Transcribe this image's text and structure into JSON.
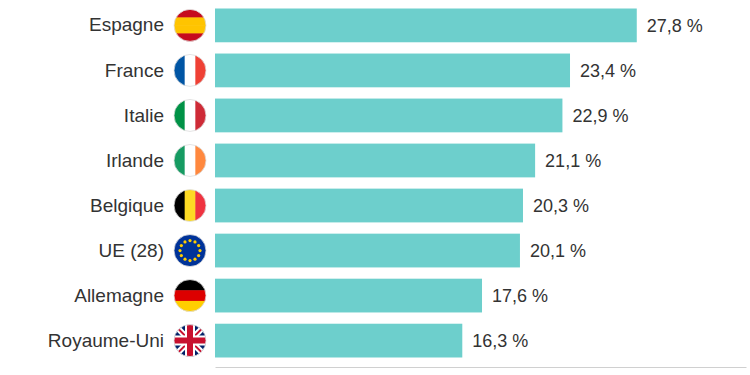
{
  "chart_data": {
    "type": "bar",
    "orientation": "horizontal",
    "categories": [
      "Espagne",
      "France",
      "Italie",
      "Irlande",
      "Belgique",
      "UE (28)",
      "Allemagne",
      "Royaume-Uni"
    ],
    "values": [
      27.8,
      23.4,
      22.9,
      21.1,
      20.3,
      20.1,
      17.6,
      16.3
    ],
    "value_labels": [
      "27,8 %",
      "23,4 %",
      "22,9 %",
      "21,1 %",
      "20,3 %",
      "20,1 %",
      "17,6 %",
      "16,3 %"
    ],
    "color": "#6dcfcc",
    "xlim": [
      0,
      35
    ],
    "xticks": [],
    "data_labels": true,
    "tick_labels": false,
    "grid": false
  }
}
